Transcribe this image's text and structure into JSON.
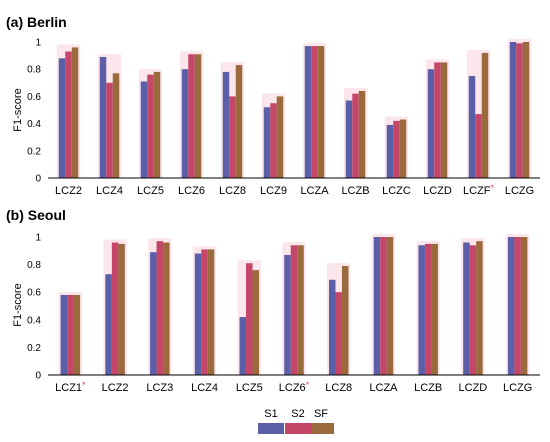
{
  "colors": {
    "S1": "#5a5fa8",
    "S2": "#c4476a",
    "SF": "#9a6a3c",
    "highlight": "#f4b6c8",
    "star": "#e0406a",
    "axis": "#000000"
  },
  "legend": {
    "items": [
      "S1",
      "S2",
      "SF"
    ]
  },
  "chart_data": [
    {
      "type": "bar",
      "title": "(a) Berlin",
      "ylabel": "F1-score",
      "ylim": [
        0,
        1
      ],
      "yticks": [
        "0",
        "0.2",
        "0.4",
        "0.6",
        "0.8",
        "1"
      ],
      "categories": [
        "LCZ2",
        "LCZ4",
        "LCZ5",
        "LCZ6",
        "LCZ8",
        "LCZ9",
        "LCZA",
        "LCZB",
        "LCZC",
        "LCZD",
        "LCZF",
        "LCZG"
      ],
      "starred": [
        "LCZF"
      ],
      "star": "*",
      "series": [
        {
          "name": "S1",
          "values": [
            0.88,
            0.89,
            0.71,
            0.8,
            0.78,
            0.52,
            0.97,
            0.57,
            0.39,
            0.8,
            0.75,
            1.0
          ]
        },
        {
          "name": "S2",
          "values": [
            0.93,
            0.7,
            0.76,
            0.91,
            0.6,
            0.55,
            0.97,
            0.62,
            0.42,
            0.85,
            0.47,
            0.99
          ]
        },
        {
          "name": "SF",
          "values": [
            0.96,
            0.77,
            0.78,
            0.91,
            0.83,
            0.6,
            0.97,
            0.64,
            0.43,
            0.85,
            0.92,
            1.0
          ]
        }
      ]
    },
    {
      "type": "bar",
      "title": "(b) Seoul",
      "ylabel": "F1-score",
      "ylim": [
        0,
        1
      ],
      "yticks": [
        "0",
        "0.2",
        "0.4",
        "0.6",
        "0.8",
        "1"
      ],
      "categories": [
        "LCZ1",
        "LCZ2",
        "LCZ3",
        "LCZ4",
        "LCZ5",
        "LCZ6",
        "LCZ8",
        "LCZA",
        "LCZB",
        "LCZD",
        "LCZG"
      ],
      "starred": [
        "LCZ1",
        "LCZ6"
      ],
      "star": "*",
      "series": [
        {
          "name": "S1",
          "values": [
            0.58,
            0.73,
            0.89,
            0.88,
            0.42,
            0.87,
            0.69,
            1.0,
            0.94,
            0.96,
            1.0
          ]
        },
        {
          "name": "S2",
          "values": [
            0.58,
            0.96,
            0.97,
            0.91,
            0.81,
            0.94,
            0.6,
            1.0,
            0.95,
            0.94,
            1.0
          ]
        },
        {
          "name": "SF",
          "values": [
            0.58,
            0.95,
            0.96,
            0.91,
            0.76,
            0.94,
            0.79,
            1.0,
            0.95,
            0.97,
            1.0
          ]
        }
      ]
    }
  ]
}
